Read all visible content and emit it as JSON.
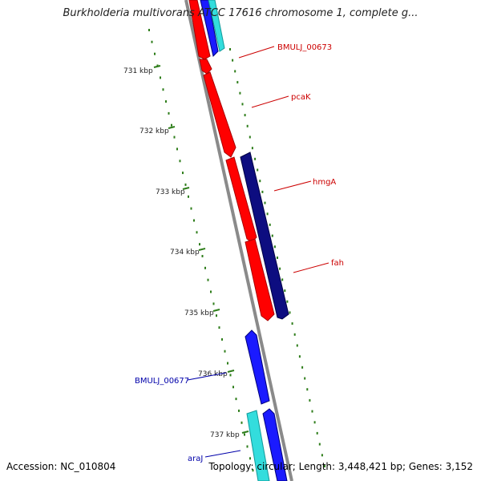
{
  "header": {
    "title": "Burkholderia multivorans ATCC 17616 chromosome 1, complete g..."
  },
  "footer": {
    "accession": "Accession: NC_010804",
    "topology": "Topology: circular; Length: 3,448,421 bp; Genes: 3,152"
  },
  "colors": {
    "backbone": "#888888",
    "gc_ticks": "#2e7d1a",
    "forward_gene": "#ff0000",
    "reverse_gene": "#0000ff",
    "dark_gene": "#000080",
    "cyan_gene": "#33dddd",
    "red_label": "#cc0000",
    "blue_label": "#0000aa"
  },
  "ruler": {
    "ticks": [
      "731 kbp",
      "732 kbp",
      "733 kbp",
      "734 kbp",
      "735 kbp",
      "736 kbp",
      "737 kbp"
    ]
  },
  "genes": [
    {
      "label": "BMULJ_00673",
      "strand": "forward"
    },
    {
      "label": "pcaK",
      "strand": "forward"
    },
    {
      "label": "hmgA",
      "strand": "forward"
    },
    {
      "label": "fah",
      "strand": "forward"
    },
    {
      "label": "BMULJ_00677",
      "strand": "reverse"
    },
    {
      "label": "araJ",
      "strand": "reverse"
    }
  ]
}
